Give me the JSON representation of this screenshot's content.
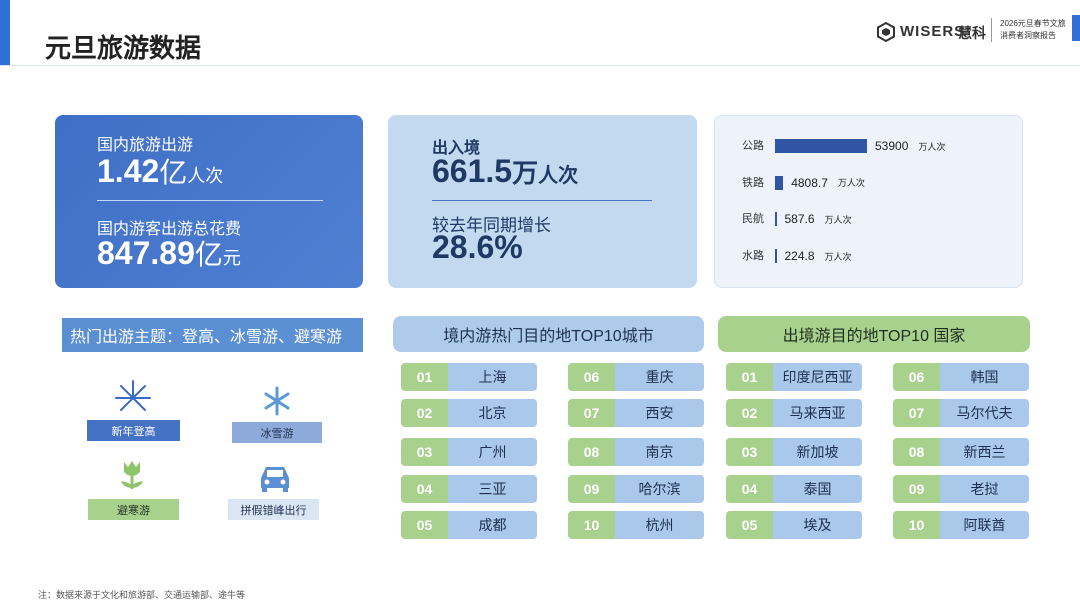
{
  "header": {
    "title": "元旦旅游数据",
    "logo": "WISERS",
    "logo_cn": "慧科",
    "report": [
      "2026元旦春节文旅",
      "消费者洞察报告"
    ]
  },
  "domestic": {
    "trips_label": "国内旅游出游",
    "trips_value": "1.42",
    "trips_unit": "亿",
    "trips_unit2": "人次",
    "spend_label": "国内游客出游总花费",
    "spend_value": "847.89",
    "spend_unit": "亿",
    "spend_unit2": "元"
  },
  "crossborder": {
    "label": "出入境",
    "value": "661.5",
    "unit": "万",
    "unit2": "人次",
    "growth_label": "较去年同期增长",
    "growth_value": "28.6%"
  },
  "transport": {
    "unit": "万人次",
    "rows": [
      {
        "name": "公路",
        "value": 53900
      },
      {
        "name": "铁路",
        "value": 4808.7
      },
      {
        "name": "民航",
        "value": 587.6
      },
      {
        "name": "水路",
        "value": 224.8
      }
    ]
  },
  "themes": {
    "title": "热门出游主题：登高、冰雪游、避寒游",
    "items": [
      "新年登高",
      "冰雪游",
      "避寒游",
      "拼假错峰出行"
    ]
  },
  "domestic_top10": {
    "title": "境内游热门目的地TOP10城市",
    "ranks": [
      "01",
      "02",
      "03",
      "04",
      "05",
      "06",
      "07",
      "08",
      "09",
      "10"
    ],
    "names": [
      "上海",
      "北京",
      "广州",
      "三亚",
      "成都",
      "重庆",
      "西安",
      "南京",
      "哈尔滨",
      "杭州"
    ]
  },
  "outbound_top10": {
    "title": "出境游目的地TOP10 国家",
    "ranks": [
      "01",
      "02",
      "03",
      "04",
      "05",
      "06",
      "07",
      "08",
      "09",
      "10"
    ],
    "names": [
      "印度尼西亚",
      "马来西亚",
      "新加坡",
      "泰国",
      "埃及",
      "韩国",
      "马尔代夫",
      "新西兰",
      "老挝",
      "阿联酋"
    ]
  },
  "footnote": "注：数据来源于文化和旅游部、交通运输部、途牛等"
}
